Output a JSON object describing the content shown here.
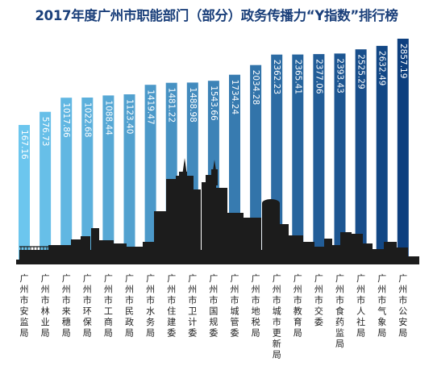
{
  "chart_data": {
    "type": "bar",
    "title": "2017年度广州市职能部门（部分）政务传播力“Y指数”排行榜",
    "categories": [
      "广州市安监局",
      "广州市林业局",
      "广州市来穗局",
      "广州市环保局",
      "广州市工商局",
      "广州市民政局",
      "广州市水务局",
      "广州市住建委",
      "广州市卫计委",
      "广州市国规委",
      "广州市城管委",
      "广州市地税局",
      "广州市城市更新局",
      "广州市教育局",
      "广州市交委",
      "广州市食药监局",
      "广州市人社局",
      "广州市气象局",
      "广州市公安局"
    ],
    "values": [
      167.16,
      576.73,
      1017.86,
      1022.68,
      1088.44,
      1123.4,
      1419.47,
      1481.22,
      1488.98,
      1543.66,
      1734.24,
      2034.28,
      2362.23,
      2365.41,
      2377.06,
      2393.43,
      2525.29,
      2632.49,
      2857.19
    ],
    "value_labels": [
      "167.16",
      "576.73",
      "1017.86",
      "1022.68",
      "1088.44",
      "1123.40",
      "1419.47",
      "1481.22",
      "1488.98",
      "1543.66",
      "1734.24",
      "2034.28",
      "2362.23",
      "2365.41",
      "2377.06",
      "2393.43",
      "2525.29",
      "2632.49",
      "2857.19"
    ],
    "colors": {
      "light": "#6cc6ee",
      "dark": "#0d3f7f",
      "title": "#1a3f7a",
      "skyline": "#1c1c1c"
    },
    "grid": false,
    "legend": "none"
  }
}
